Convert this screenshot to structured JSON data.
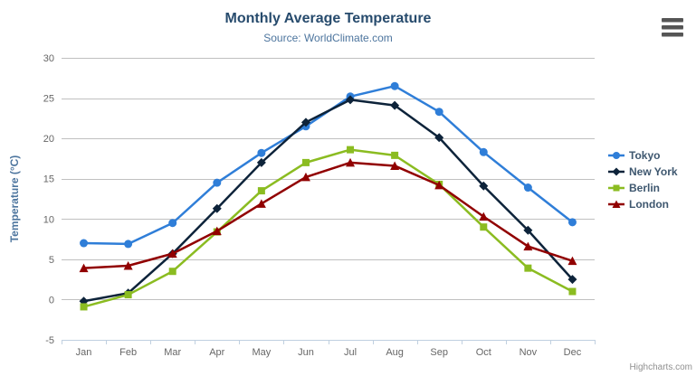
{
  "header": {
    "title": "Monthly Average Temperature",
    "subtitle": "Source: WorldClimate.com"
  },
  "credit_label": "Highcharts.com",
  "menu_icon": "hamburger-export-menu",
  "colors": {
    "title": "#274b6d",
    "subtitle": "#4d759e",
    "axis_label": "#666666",
    "axis_title": "#4d759e",
    "gridline": "#c0c0c0",
    "axis_line": "#c0d0e0",
    "legend_text": "#3e576f",
    "credit": "#909090"
  },
  "chart_data": {
    "type": "line",
    "title": "Monthly Average Temperature",
    "subtitle": "Source: WorldClimate.com",
    "categories": [
      "Jan",
      "Feb",
      "Mar",
      "Apr",
      "May",
      "Jun",
      "Jul",
      "Aug",
      "Sep",
      "Oct",
      "Nov",
      "Dec"
    ],
    "series": [
      {
        "name": "Tokyo",
        "color": "#2f7ed8",
        "marker": "circle",
        "values": [
          7.0,
          6.9,
          9.5,
          14.5,
          18.2,
          21.5,
          25.2,
          26.5,
          23.3,
          18.3,
          13.9,
          9.6
        ]
      },
      {
        "name": "New York",
        "color": "#0d233a",
        "marker": "diamond",
        "values": [
          -0.2,
          0.8,
          5.7,
          11.3,
          17.0,
          22.0,
          24.8,
          24.1,
          20.1,
          14.1,
          8.6,
          2.5
        ]
      },
      {
        "name": "Berlin",
        "color": "#8bbc21",
        "marker": "square",
        "values": [
          -0.9,
          0.6,
          3.5,
          8.4,
          13.5,
          17.0,
          18.6,
          17.9,
          14.3,
          9.0,
          3.9,
          1.0
        ]
      },
      {
        "name": "London",
        "color": "#910000",
        "marker": "triangle",
        "values": [
          3.9,
          4.2,
          5.7,
          8.5,
          11.9,
          15.2,
          17.0,
          16.6,
          14.2,
          10.3,
          6.6,
          4.8
        ]
      }
    ],
    "xlabel": "",
    "ylabel": "Temperature (°C)",
    "ylim": [
      -5,
      30
    ],
    "ytick_step": 5,
    "yticks": [
      -5,
      0,
      5,
      10,
      15,
      20,
      25,
      30
    ],
    "grid": true,
    "legend_position": "right"
  }
}
